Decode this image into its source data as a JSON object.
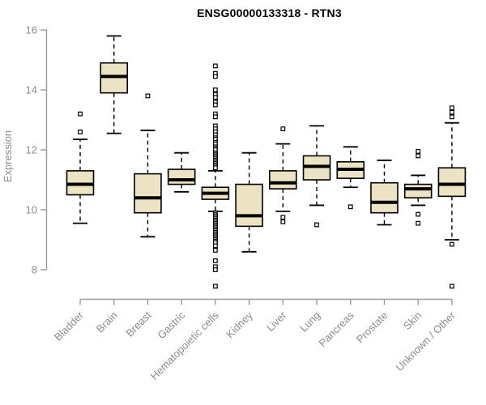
{
  "chart_data": {
    "type": "boxplot",
    "title": "ENSG00000133318 - RTN3",
    "xlabel": "",
    "ylabel": "Expression",
    "ylim": [
      7.2,
      16.2
    ],
    "yticks": [
      8,
      10,
      12,
      14,
      16
    ],
    "grid": false,
    "legend": "none",
    "categories": [
      "Bladder",
      "Brain",
      "Breast",
      "Gastric",
      "Hematopoietic cells",
      "Kidney",
      "Liver",
      "Lung",
      "Pancreas",
      "Prostate",
      "Skin",
      "Unknown / Other"
    ],
    "boxes": [
      {
        "category": "Bladder",
        "whisker_low": 9.55,
        "q1": 10.5,
        "median": 10.85,
        "q3": 11.3,
        "whisker_high": 12.35,
        "outliers": [
          13.2,
          12.6
        ]
      },
      {
        "category": "Brain",
        "whisker_low": 12.55,
        "q1": 13.9,
        "median": 14.45,
        "q3": 14.9,
        "whisker_high": 15.8,
        "outliers": []
      },
      {
        "category": "Breast",
        "whisker_low": 9.1,
        "q1": 9.9,
        "median": 10.4,
        "q3": 11.2,
        "whisker_high": 12.65,
        "outliers": [
          13.8
        ]
      },
      {
        "category": "Gastric",
        "whisker_low": 10.6,
        "q1": 10.85,
        "median": 11.0,
        "q3": 11.35,
        "whisker_high": 11.9,
        "outliers": []
      },
      {
        "category": "Hematopoietic cells",
        "whisker_low": 9.95,
        "q1": 10.35,
        "median": 10.55,
        "q3": 10.75,
        "whisker_high": 11.3,
        "outliers": [
          14.8,
          14.55,
          14.45,
          14.0,
          13.85,
          13.75,
          13.6,
          13.5,
          13.2,
          13.1,
          12.8,
          12.7,
          12.6,
          12.5,
          12.4,
          12.35,
          12.25,
          12.2,
          12.1,
          12.05,
          12.0,
          11.9,
          11.85,
          11.8,
          11.75,
          11.7,
          11.65,
          11.6,
          11.55,
          11.5,
          11.45,
          11.4,
          9.9,
          9.85,
          9.8,
          9.75,
          9.7,
          9.65,
          9.6,
          9.55,
          9.5,
          9.45,
          9.4,
          9.35,
          9.3,
          9.25,
          9.2,
          9.15,
          9.1,
          9.05,
          9.0,
          8.95,
          8.9,
          8.8,
          8.65,
          8.3,
          8.1,
          8.0,
          7.45
        ]
      },
      {
        "category": "Kidney",
        "whisker_low": 8.6,
        "q1": 9.45,
        "median": 9.8,
        "q3": 10.85,
        "whisker_high": 11.9,
        "outliers": []
      },
      {
        "category": "Liver",
        "whisker_low": 9.95,
        "q1": 10.7,
        "median": 10.9,
        "q3": 11.3,
        "whisker_high": 12.2,
        "outliers": [
          12.7,
          9.75,
          9.6
        ]
      },
      {
        "category": "Lung",
        "whisker_low": 10.15,
        "q1": 11.0,
        "median": 11.45,
        "q3": 11.8,
        "whisker_high": 12.8,
        "outliers": [
          9.5
        ]
      },
      {
        "category": "Pancreas",
        "whisker_low": 10.75,
        "q1": 11.05,
        "median": 11.35,
        "q3": 11.6,
        "whisker_high": 12.1,
        "outliers": [
          10.1
        ]
      },
      {
        "category": "Prostate",
        "whisker_low": 9.5,
        "q1": 9.9,
        "median": 10.25,
        "q3": 10.9,
        "whisker_high": 11.65,
        "outliers": []
      },
      {
        "category": "Skin",
        "whisker_low": 10.15,
        "q1": 10.4,
        "median": 10.7,
        "q3": 10.85,
        "whisker_high": 11.15,
        "outliers": [
          11.95,
          11.8,
          9.85,
          9.55
        ]
      },
      {
        "category": "Unknown / Other",
        "whisker_low": 9.0,
        "q1": 10.45,
        "median": 10.85,
        "q3": 11.4,
        "whisker_high": 12.9,
        "outliers": [
          13.4,
          13.25,
          13.1,
          8.85,
          7.45
        ]
      }
    ],
    "colors": {
      "box_fill": "#EBE3C4",
      "box_stroke": "#000000",
      "median": "#000000",
      "whisker": "#000000",
      "outlier_stroke": "#000000",
      "axis_line": "#9A9A9A",
      "axis_text": "#8C8C8C",
      "title": "#000000",
      "background": "#FFFFFF"
    }
  }
}
